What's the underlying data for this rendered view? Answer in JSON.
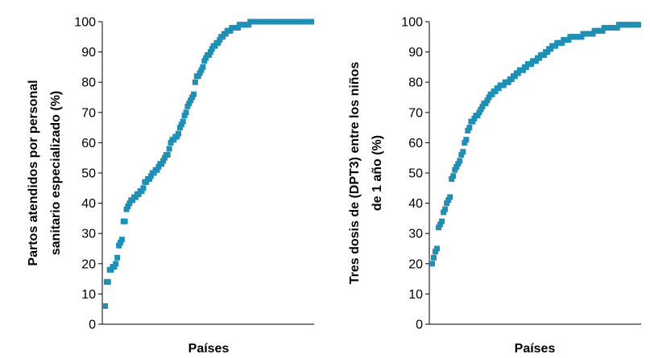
{
  "chart_data": [
    {
      "type": "scatter",
      "ylabel_lines": [
        "Partos atendidos por personal",
        "sanitario especializado (%)"
      ],
      "xlabel": "Países",
      "ylim": [
        0,
        100
      ],
      "yticks": [
        0,
        10,
        20,
        30,
        40,
        50,
        60,
        70,
        80,
        90,
        100
      ],
      "color": "#1f8fb5",
      "series": [
        {
          "values": [
            6,
            14,
            14,
            18,
            18,
            19,
            19,
            20,
            22,
            26,
            27,
            28,
            34,
            34,
            38,
            39,
            40,
            41,
            41,
            42,
            42,
            43,
            43,
            44,
            44,
            45,
            47,
            47,
            48,
            48,
            49,
            50,
            50,
            51,
            51,
            52,
            53,
            53,
            54,
            55,
            56,
            56,
            58,
            60,
            61,
            61,
            62,
            62,
            63,
            65,
            66,
            67,
            69,
            70,
            72,
            73,
            74,
            75,
            76,
            80,
            82,
            82,
            83,
            84,
            85,
            87,
            88,
            89,
            89,
            90,
            91,
            92,
            92,
            93,
            93,
            94,
            95,
            95,
            96,
            96,
            97,
            97,
            97,
            98,
            98,
            98,
            98,
            98,
            99,
            99,
            99,
            99,
            99,
            99,
            99,
            100,
            100,
            100,
            100,
            100,
            100,
            100,
            100,
            100,
            100,
            100,
            100,
            100,
            100,
            100,
            100,
            100,
            100,
            100,
            100,
            100,
            100,
            100,
            100,
            100,
            100,
            100,
            100,
            100,
            100,
            100,
            100,
            100,
            100,
            100,
            100,
            100,
            100,
            100,
            100,
            100
          ]
        }
      ]
    },
    {
      "type": "scatter",
      "ylabel_lines": [
        "Tres dosis de (DPT3) entre los niños",
        "de 1 año (%)"
      ],
      "xlabel": "Países",
      "ylim": [
        0,
        100
      ],
      "yticks": [
        0,
        10,
        20,
        30,
        40,
        50,
        60,
        70,
        80,
        90,
        100
      ],
      "color": "#1f8fb5",
      "series": [
        {
          "values": [
            20,
            22,
            24,
            25,
            32,
            33,
            34,
            37,
            38,
            40,
            41,
            42,
            48,
            49,
            51,
            52,
            53,
            54,
            56,
            57,
            60,
            61,
            64,
            65,
            67,
            67,
            68,
            69,
            69,
            70,
            71,
            72,
            73,
            73,
            74,
            75,
            76,
            76,
            77,
            77,
            78,
            78,
            79,
            79,
            79,
            80,
            80,
            80,
            81,
            81,
            82,
            82,
            83,
            83,
            84,
            84,
            84,
            85,
            85,
            86,
            86,
            86,
            87,
            87,
            87,
            88,
            88,
            89,
            89,
            89,
            90,
            90,
            91,
            91,
            92,
            92,
            92,
            93,
            93,
            93,
            93,
            94,
            94,
            94,
            94,
            95,
            95,
            95,
            95,
            95,
            95,
            95,
            95,
            96,
            96,
            96,
            96,
            96,
            96,
            96,
            97,
            97,
            97,
            97,
            97,
            97,
            98,
            98,
            98,
            98,
            98,
            98,
            98,
            98,
            98,
            99,
            99,
            99,
            99,
            99,
            99,
            99,
            99,
            99,
            99,
            99,
            99,
            99
          ]
        }
      ]
    }
  ]
}
